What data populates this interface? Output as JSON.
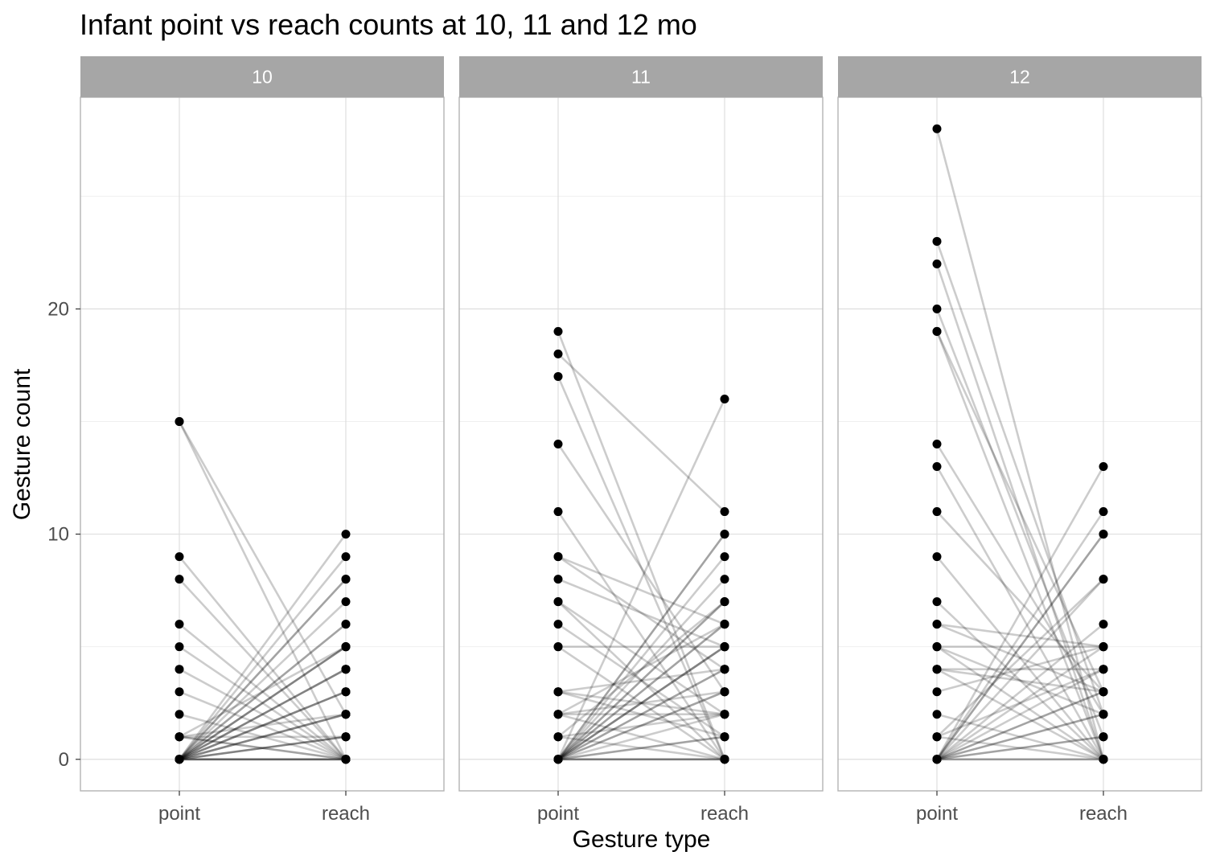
{
  "chart_data": {
    "type": "line",
    "title": "Infant point vs reach counts at 10, 11 and 12 mo",
    "xlabel": "Gesture type",
    "ylabel": "Gesture count",
    "categories": [
      "point",
      "reach"
    ],
    "y_ticks": [
      "0",
      "10",
      "20"
    ],
    "ylim": [
      -1.4,
      29.4
    ],
    "grid": true,
    "colors": {
      "strip_fill": "#A6A6A6",
      "strip_text": "#FFFFFF",
      "panel_border": "#B3B3B3",
      "grid_major": "#DEDEDE",
      "grid_minor": "#EFEFEF",
      "points": "#000000",
      "lines": "#000000",
      "axis_text": "#4D4D4D"
    },
    "panels": [
      {
        "label": "10",
        "pairs": [
          [
            15,
            0
          ],
          [
            15,
            2
          ],
          [
            9,
            0
          ],
          [
            8,
            0
          ],
          [
            6,
            0
          ],
          [
            5,
            0
          ],
          [
            4,
            0
          ],
          [
            3,
            0
          ],
          [
            2,
            0
          ],
          [
            1,
            0
          ],
          [
            1,
            5
          ],
          [
            1,
            1
          ],
          [
            1,
            0
          ],
          [
            1,
            2
          ],
          [
            0,
            10
          ],
          [
            0,
            9
          ],
          [
            0,
            8
          ],
          [
            0,
            8
          ],
          [
            0,
            7
          ],
          [
            0,
            6
          ],
          [
            0,
            6
          ],
          [
            0,
            5
          ],
          [
            0,
            5
          ],
          [
            0,
            5
          ],
          [
            0,
            4
          ],
          [
            0,
            4
          ],
          [
            0,
            4
          ],
          [
            0,
            3
          ],
          [
            0,
            3
          ],
          [
            0,
            3
          ],
          [
            0,
            2
          ],
          [
            0,
            2
          ],
          [
            0,
            2
          ],
          [
            0,
            1
          ],
          [
            0,
            1
          ],
          [
            0,
            1
          ],
          [
            0,
            0
          ],
          [
            0,
            0
          ],
          [
            0,
            0
          ],
          [
            0,
            0
          ]
        ]
      },
      {
        "label": "11",
        "pairs": [
          [
            19,
            0
          ],
          [
            18,
            11
          ],
          [
            17,
            0
          ],
          [
            14,
            3
          ],
          [
            11,
            0
          ],
          [
            9,
            6
          ],
          [
            9,
            4
          ],
          [
            8,
            5
          ],
          [
            7,
            2
          ],
          [
            7,
            0
          ],
          [
            6,
            1
          ],
          [
            5,
            5
          ],
          [
            5,
            0
          ],
          [
            3,
            4
          ],
          [
            3,
            2
          ],
          [
            3,
            1
          ],
          [
            2,
            3
          ],
          [
            2,
            2
          ],
          [
            2,
            6
          ],
          [
            2,
            0
          ],
          [
            1,
            2
          ],
          [
            1,
            0
          ],
          [
            1,
            7
          ],
          [
            0,
            16
          ],
          [
            0,
            10
          ],
          [
            0,
            10
          ],
          [
            0,
            9
          ],
          [
            0,
            8
          ],
          [
            0,
            7
          ],
          [
            0,
            7
          ],
          [
            0,
            6
          ],
          [
            0,
            6
          ],
          [
            0,
            5
          ],
          [
            0,
            5
          ],
          [
            0,
            5
          ],
          [
            0,
            4
          ],
          [
            0,
            4
          ],
          [
            0,
            3
          ],
          [
            0,
            3
          ],
          [
            0,
            2
          ],
          [
            0,
            1
          ],
          [
            0,
            1
          ],
          [
            0,
            0
          ],
          [
            0,
            0
          ],
          [
            0,
            0
          ]
        ]
      },
      {
        "label": "12",
        "pairs": [
          [
            28,
            0
          ],
          [
            23,
            2
          ],
          [
            22,
            0
          ],
          [
            20,
            1
          ],
          [
            19,
            3
          ],
          [
            19,
            0
          ],
          [
            14,
            2
          ],
          [
            13,
            0
          ],
          [
            11,
            3
          ],
          [
            9,
            0
          ],
          [
            7,
            0
          ],
          [
            6,
            5
          ],
          [
            6,
            3
          ],
          [
            5,
            2
          ],
          [
            5,
            5
          ],
          [
            5,
            0
          ],
          [
            4,
            4
          ],
          [
            4,
            3
          ],
          [
            4,
            0
          ],
          [
            3,
            5
          ],
          [
            2,
            0
          ],
          [
            1,
            8
          ],
          [
            1,
            4
          ],
          [
            1,
            0
          ],
          [
            0,
            13
          ],
          [
            0,
            11
          ],
          [
            0,
            10
          ],
          [
            0,
            10
          ],
          [
            0,
            8
          ],
          [
            0,
            6
          ],
          [
            0,
            5
          ],
          [
            0,
            4
          ],
          [
            0,
            3
          ],
          [
            0,
            3
          ],
          [
            0,
            2
          ],
          [
            0,
            2
          ],
          [
            0,
            1
          ],
          [
            0,
            1
          ],
          [
            0,
            0
          ],
          [
            0,
            0
          ]
        ]
      }
    ]
  }
}
